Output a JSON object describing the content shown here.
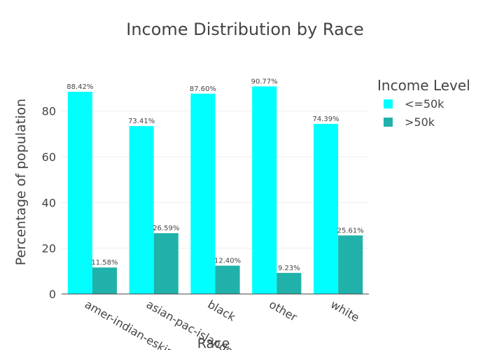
{
  "chart_data": {
    "type": "bar",
    "title": "Income Distribution by Race",
    "xlabel": "Race",
    "ylabel": "Percentage of population",
    "categories": [
      "amer-indian-eskimo",
      "asian-pac-islander",
      "black",
      "other",
      "white"
    ],
    "series": [
      {
        "name": "<=50k",
        "values": [
          88.42,
          73.41,
          87.6,
          90.77,
          74.39
        ],
        "labels": [
          "88.42%",
          "73.41%",
          "87.60%",
          "90.77%",
          "74.39%"
        ],
        "color": "#00ffff"
      },
      {
        "name": ">50k",
        "values": [
          11.58,
          26.59,
          12.4,
          9.23,
          25.61
        ],
        "labels": [
          "11.58%",
          "26.59%",
          "12.40%",
          "9.23%",
          "25.61%"
        ],
        "color": "#20b2aa"
      }
    ],
    "yticks": [
      0,
      20,
      40,
      60,
      80
    ],
    "ylim": [
      0,
      95.5
    ],
    "grid": true,
    "legend_title": "Income Level",
    "legend_position": "top-right"
  }
}
